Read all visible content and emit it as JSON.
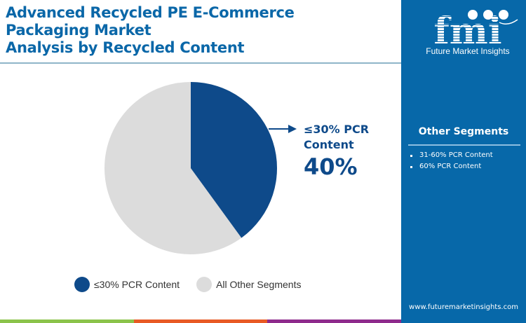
{
  "header": {
    "title_lines": [
      "Advanced Recycled PE E-Commerce",
      "Packaging Market",
      "Analysis by Recycled Content"
    ]
  },
  "callout": {
    "label_line1": "≤30% PCR",
    "label_line2": "Content",
    "value": "40%"
  },
  "legend": {
    "items": [
      {
        "label": "≤30% PCR Content",
        "color": "#0e4a8a"
      },
      {
        "label": "All Other Segments",
        "color": "#dcdcdc"
      }
    ]
  },
  "sidebar": {
    "logo_text": "Future Market Insights",
    "logo_letters": "fmi",
    "other_title": "Other Segments",
    "other_items": [
      "31-60% PCR Content",
      "60% PCR Content"
    ],
    "website": "www.futuremarketinsights.com",
    "background": "#0768a9"
  },
  "bottom_bar_colors": [
    "#8bc34a",
    "#e85a24",
    "#8e2a8c"
  ],
  "chart_data": {
    "type": "pie",
    "title": "Advanced Recycled PE E-Commerce Packaging Market Analysis by Recycled Content",
    "categories": [
      "≤30% PCR Content",
      "All Other Segments"
    ],
    "values": [
      40,
      60
    ],
    "colors": [
      "#0e4a8a",
      "#dcdcdc"
    ],
    "start_angle": "12 o'clock, clockwise",
    "annotations": [
      {
        "label": "≤30% PCR Content",
        "value": "40%"
      }
    ],
    "legend_position": "bottom"
  }
}
